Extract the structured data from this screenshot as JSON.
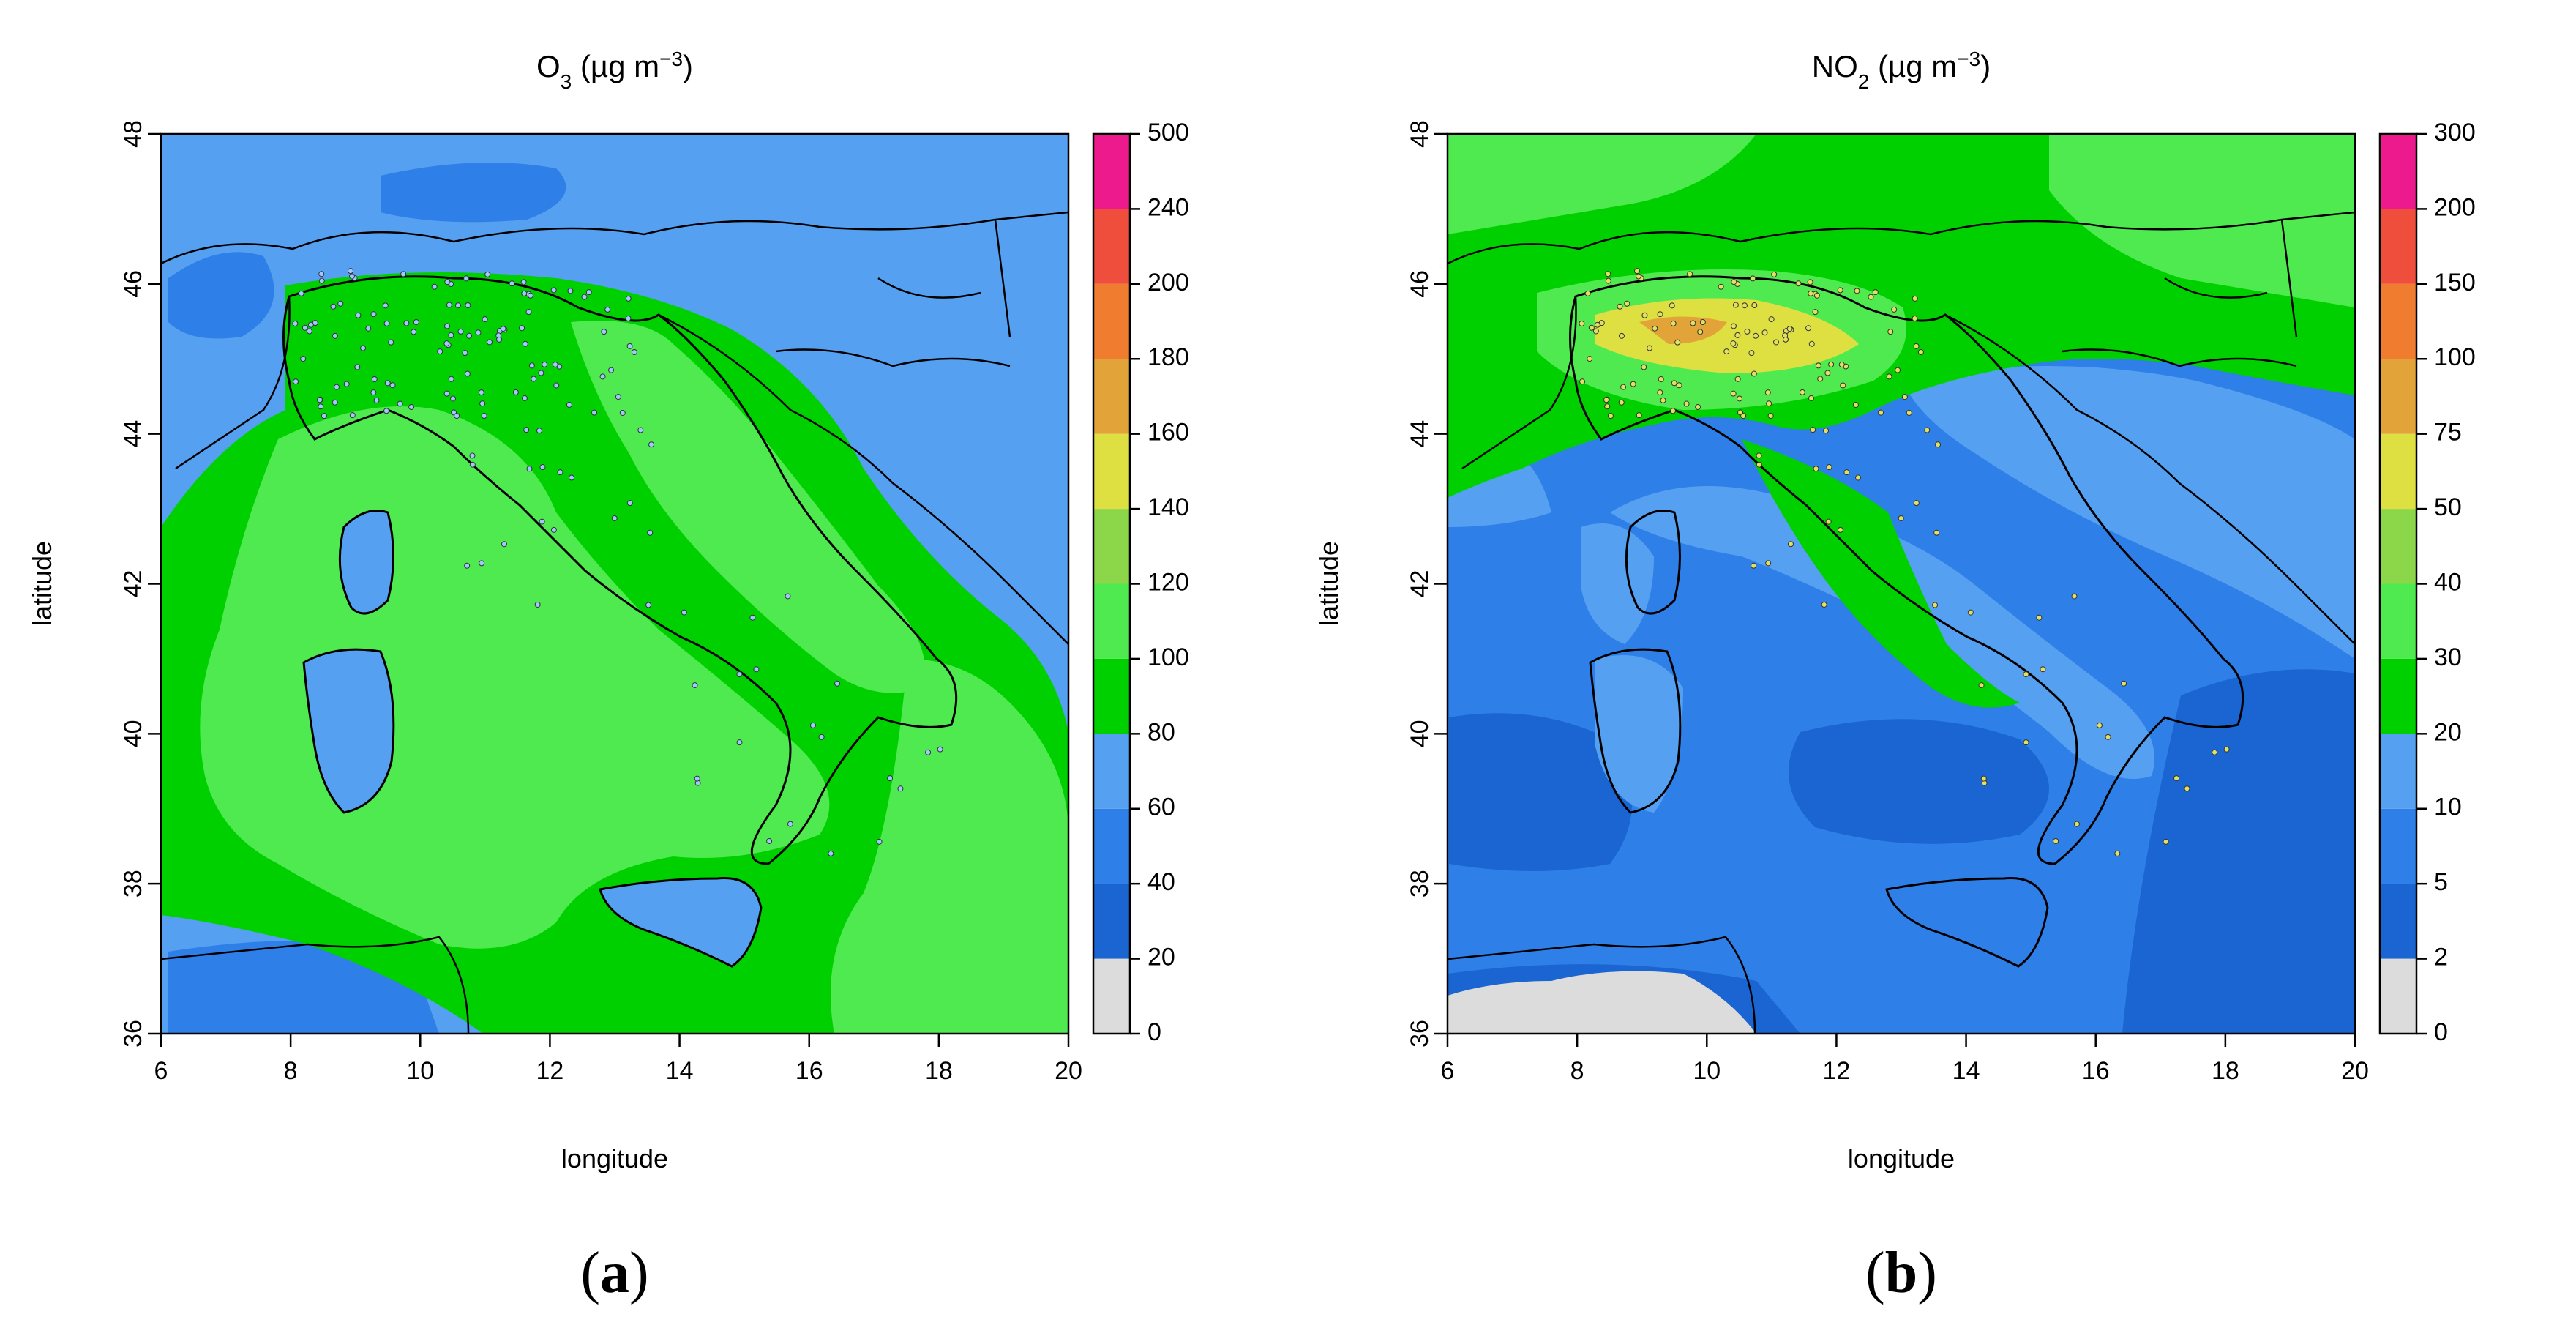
{
  "panels": [
    {
      "caption_letter": "a",
      "title_main": "O",
      "title_sub": "3",
      "title_units": " (µg m",
      "title_exp": "−3",
      "title_close": ")",
      "xlabel": "longitude",
      "ylabel": "latitude",
      "x_ticks": [
        6,
        8,
        10,
        12,
        14,
        16,
        18,
        20
      ],
      "y_ticks": [
        36,
        38,
        40,
        42,
        44,
        46,
        48
      ],
      "legend_labels": [
        "0",
        "20",
        "40",
        "60",
        "80",
        "100",
        "120",
        "140",
        "160",
        "180",
        "200",
        "240",
        "500"
      ],
      "legend_colors": [
        "#dcdcdc",
        "#1a65d2",
        "#2e7fe8",
        "#55a0f0",
        "#00d000",
        "#4fea4f",
        "#8cd64a",
        "#dde040",
        "#e2a438",
        "#f07c30",
        "#f04e3c",
        "#ec1a8c"
      ],
      "sea_color": "#55a0f0",
      "land_color": "#4fea4f",
      "coast_color": "#00d000"
    },
    {
      "caption_letter": "b",
      "title_main": "NO",
      "title_sub": "2",
      "title_units": " (µg m",
      "title_exp": "−3",
      "title_close": ")",
      "xlabel": "longitude",
      "ylabel": "latitude",
      "x_ticks": [
        6,
        8,
        10,
        12,
        14,
        16,
        18,
        20
      ],
      "y_ticks": [
        36,
        38,
        40,
        42,
        44,
        46,
        48
      ],
      "legend_labels": [
        "0",
        "2",
        "5",
        "10",
        "20",
        "30",
        "40",
        "50",
        "75",
        "100",
        "150",
        "200",
        "300"
      ],
      "legend_colors": [
        "#dcdcdc",
        "#1a65d2",
        "#2e7fe8",
        "#55a0f0",
        "#00d000",
        "#4fea4f",
        "#8cd64a",
        "#dde040",
        "#e2a438",
        "#f07c30",
        "#f04e3c",
        "#ec1a8c"
      ],
      "sea_color": "#2e7fe8",
      "land_color": "#00d000",
      "hotspot_color": "#dde040"
    }
  ]
}
